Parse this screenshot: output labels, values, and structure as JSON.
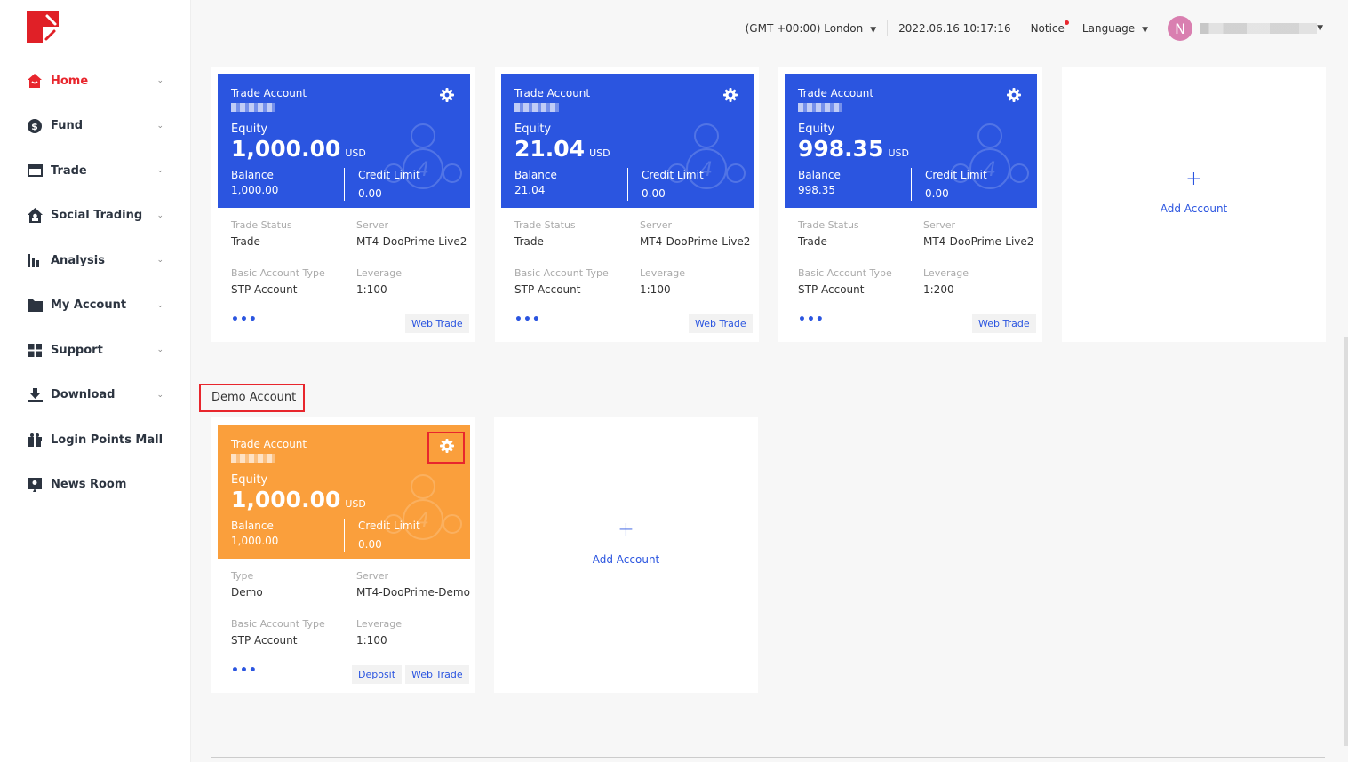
{
  "colors": {
    "accent": "#2b55e0",
    "brand": "#e8262d",
    "live_header": "#2b55e0",
    "demo_header": "#fa9f3c"
  },
  "sidebar": {
    "items": [
      {
        "label": "Home",
        "icon": "home-icon",
        "active": true
      },
      {
        "label": "Fund",
        "icon": "dollar-icon"
      },
      {
        "label": "Trade",
        "icon": "card-icon"
      },
      {
        "label": "Social Trading",
        "icon": "social-icon"
      },
      {
        "label": "Analysis",
        "icon": "bar-chart-icon"
      },
      {
        "label": "My Account",
        "icon": "folder-icon"
      },
      {
        "label": "Support",
        "icon": "grid-icon"
      },
      {
        "label": "Download",
        "icon": "download-icon"
      },
      {
        "label": "Login Points Mall",
        "icon": "gift-icon",
        "nochev": true
      },
      {
        "label": "News Room",
        "icon": "news-icon",
        "nochev": true
      }
    ]
  },
  "topbar": {
    "timezone": "(GMT +00:00) London",
    "datetime": "2022.06.16 10:17:16",
    "notice": "Notice",
    "language": "Language",
    "avatar_letter": "N"
  },
  "live_accounts": [
    {
      "title": "Trade Account",
      "equity_label": "Equity",
      "equity": "1,000.00",
      "currency": "USD",
      "balance_label": "Balance",
      "balance": "1,000.00",
      "credit_label": "Credit Limit",
      "credit": "0.00",
      "f1_label": "Trade Status",
      "f1": "Trade",
      "server_label": "Server",
      "server": "MT4-DooPrime-Live2",
      "type_label": "Basic Account Type",
      "type": "STP Account",
      "leverage_label": "Leverage",
      "leverage": "1:100",
      "web_trade": "Web Trade"
    },
    {
      "title": "Trade Account",
      "equity_label": "Equity",
      "equity": "21.04",
      "currency": "USD",
      "balance_label": "Balance",
      "balance": "21.04",
      "credit_label": "Credit Limit",
      "credit": "0.00",
      "f1_label": "Trade Status",
      "f1": "Trade",
      "server_label": "Server",
      "server": "MT4-DooPrime-Live2",
      "type_label": "Basic Account Type",
      "type": "STP Account",
      "leverage_label": "Leverage",
      "leverage": "1:100",
      "web_trade": "Web Trade"
    },
    {
      "title": "Trade Account",
      "equity_label": "Equity",
      "equity": "998.35",
      "currency": "USD",
      "balance_label": "Balance",
      "balance": "998.35",
      "credit_label": "Credit Limit",
      "credit": "0.00",
      "f1_label": "Trade Status",
      "f1": "Trade",
      "server_label": "Server",
      "server": "MT4-DooPrime-Live2",
      "type_label": "Basic Account Type",
      "type": "STP Account",
      "leverage_label": "Leverage",
      "leverage": "1:200",
      "web_trade": "Web Trade"
    }
  ],
  "add_account": "Add Account",
  "demo_section": {
    "label": "Demo Account",
    "accounts": [
      {
        "title": "Trade Account",
        "equity_label": "Equity",
        "equity": "1,000.00",
        "currency": "USD",
        "balance_label": "Balance",
        "balance": "1,000.00",
        "credit_label": "Credit Limit",
        "credit": "0.00",
        "f1_label": "Type",
        "f1": "Demo",
        "server_label": "Server",
        "server": "MT4-DooPrime-Demo",
        "type_label": "Basic Account Type",
        "type": "STP Account",
        "leverage_label": "Leverage",
        "leverage": "1:100",
        "deposit": "Deposit",
        "web_trade": "Web Trade"
      }
    ]
  }
}
